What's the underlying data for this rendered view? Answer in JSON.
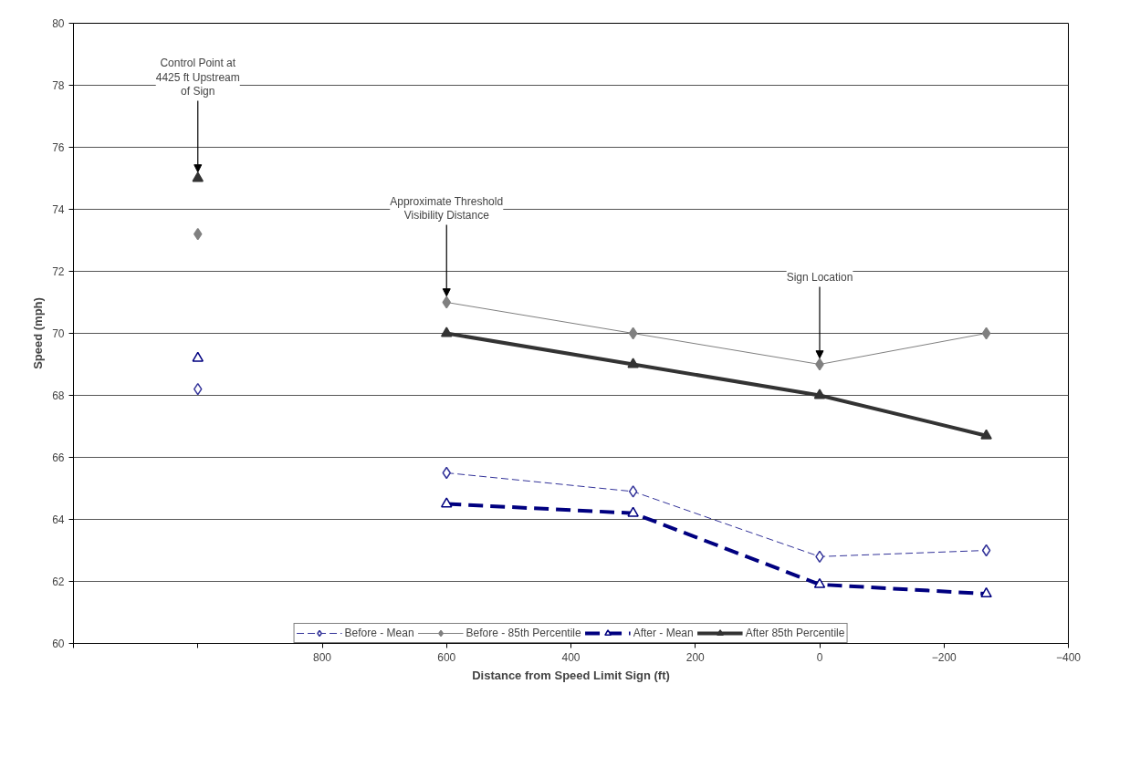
{
  "chart_data": {
    "type": "line",
    "xlabel": "Distance from Speed Limit Sign (ft)",
    "ylabel": "Speed (mph)",
    "x": [
      1000,
      800,
      600,
      300,
      0,
      -268
    ],
    "series": [
      {
        "name": "Before - Mean",
        "color": "#333399",
        "values": [
          68.2,
          null,
          65.5,
          64.9,
          62.8,
          63.0
        ],
        "marker": "diamond",
        "line_style": "dashed"
      },
      {
        "name": "Before - 85th Percentile",
        "color": "#808080",
        "values": [
          73.2,
          null,
          71,
          70,
          69,
          70
        ],
        "marker": "diamond",
        "line_style": "solid"
      },
      {
        "name": "After - Mean",
        "color": "#000080",
        "values": [
          69.2,
          null,
          64.5,
          64.2,
          61.9,
          61.6
        ],
        "marker": "triangle",
        "line_style": "dashed"
      },
      {
        "name": "After 85th Percentile",
        "color": "#333333",
        "values": [
          75,
          null,
          70,
          69,
          68,
          66.7
        ],
        "marker": "triangle",
        "line_style": "solid"
      }
    ],
    "xlim": [
      1200,
      -400
    ],
    "xticks": [
      {
        "value": 1200,
        "label": null
      },
      {
        "value": 1000,
        "label": null
      },
      800,
      600,
      400,
      200,
      0,
      -200,
      -400
    ],
    "ylim": [
      60,
      80
    ],
    "yticks": [
      60,
      62,
      64,
      66,
      68,
      70,
      72,
      74,
      76,
      78,
      80
    ],
    "grid": "y",
    "legend": "bottom",
    "annotations": [
      {
        "text": "Control Point at\n4425 ft Upstream\nof Sign",
        "x": 1000,
        "y": 75
      },
      {
        "text": "Approximate Threshold\nVisibility Distance",
        "x": 600,
        "y": 71
      },
      {
        "text": "Sign Location",
        "x": 0,
        "y": 69
      }
    ]
  }
}
